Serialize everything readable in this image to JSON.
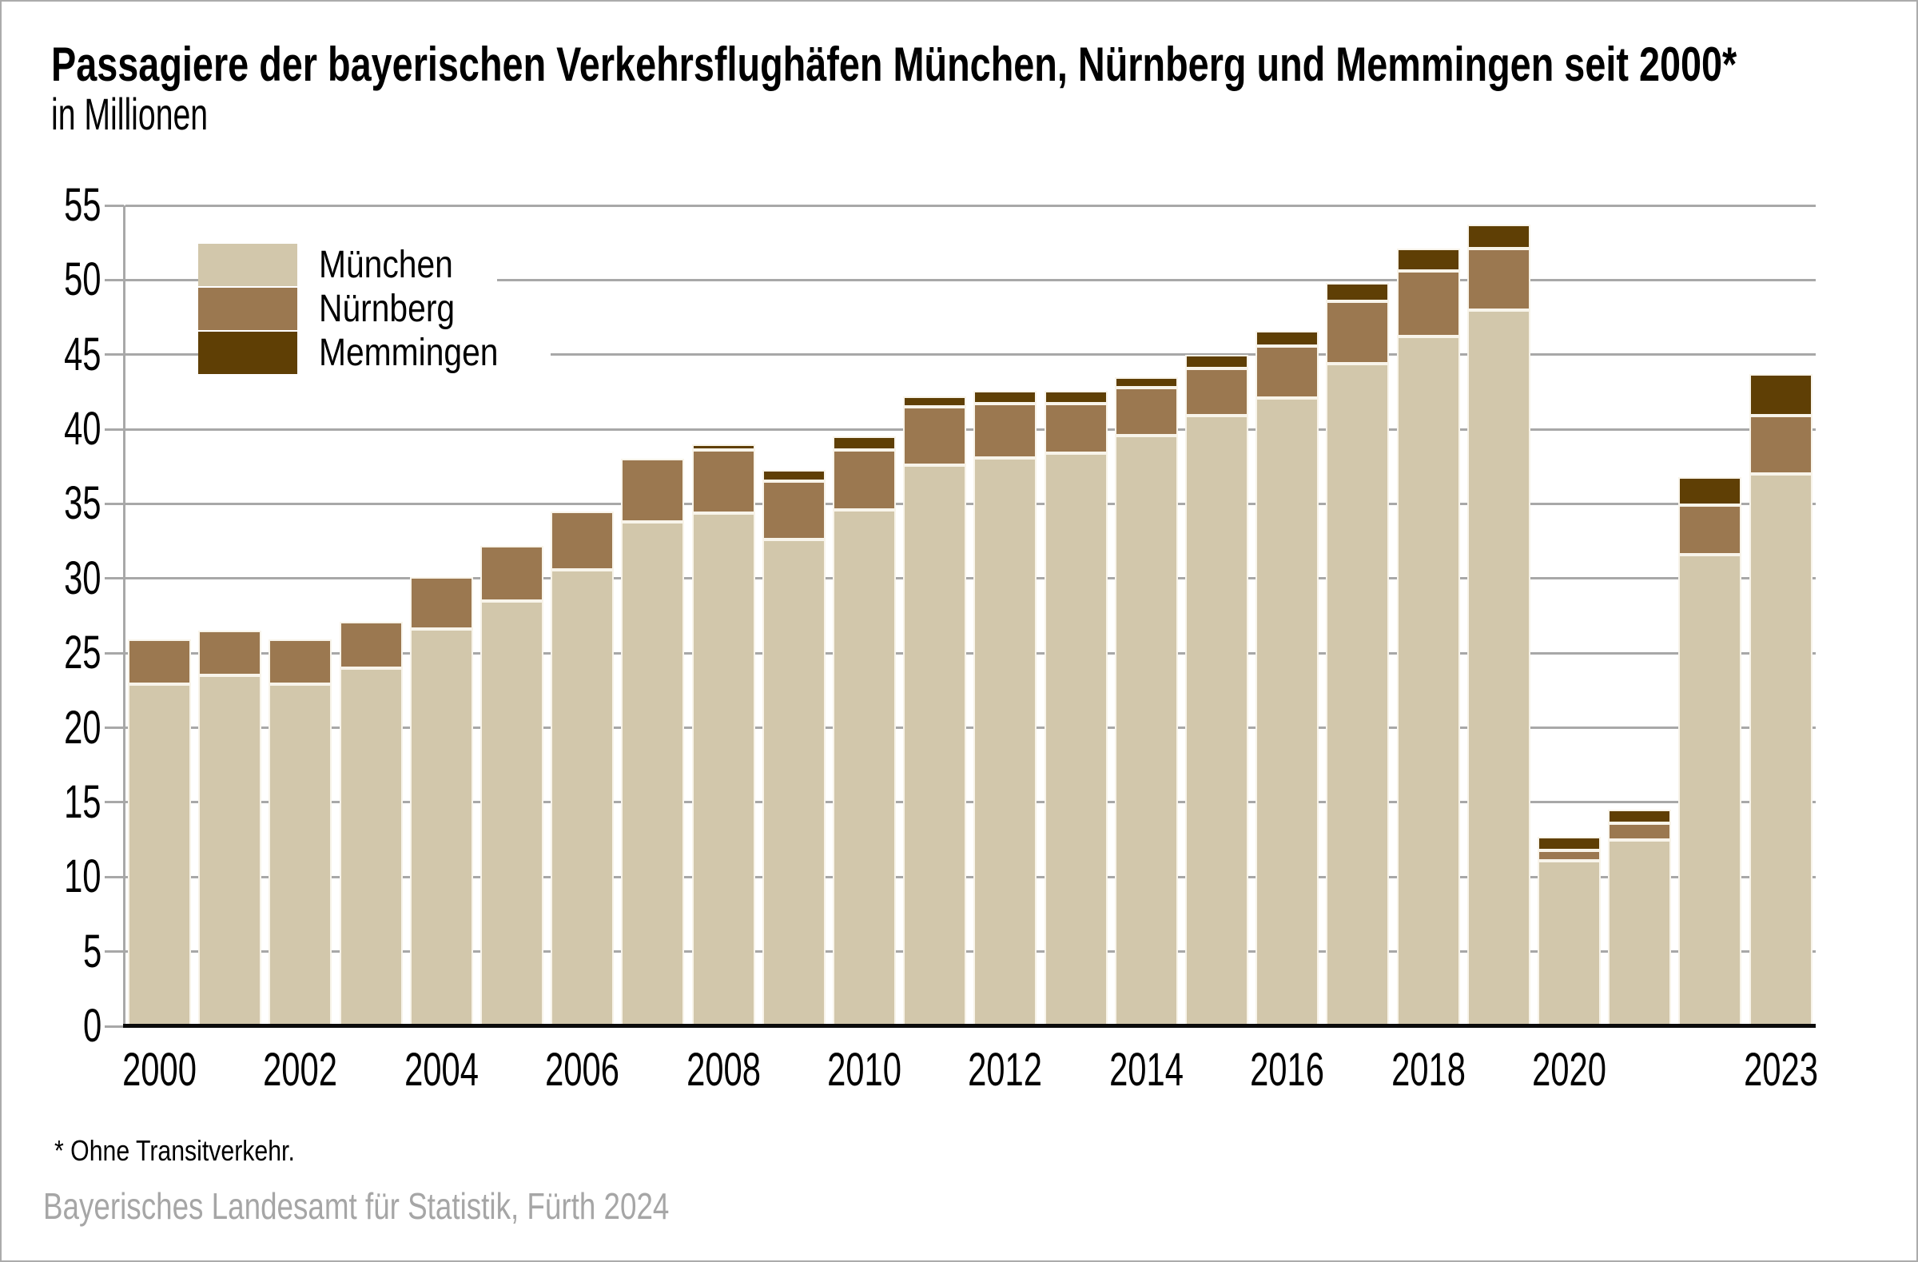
{
  "header": {
    "title": "Passagiere der bayerischen Verkehrsflughäfen München, Nürnberg und Memmingen seit 2000*",
    "subtitle": "in Millionen"
  },
  "footer": {
    "footnote": "* Ohne Transitverkehr.",
    "source": "Bayerisches Landesamt für Statistik, Fürth 2024"
  },
  "colors": {
    "muenchen": "#D2C7AB",
    "nuernberg": "#9B7850",
    "memmingen": "#5F3F05",
    "gridline": "#A8A8A8",
    "zero_axis": "#0B0B0B",
    "segment_border": "#F8F4EA",
    "source_text": "#A6A6A6",
    "frame": "#ABABAB",
    "background": "#FFFFFF"
  },
  "chart_data": {
    "type": "bar",
    "stacked": true,
    "title": "Passagiere der bayerischen Verkehrsflughäfen München, Nürnberg und Memmingen seit 2000*",
    "subtitle_unit": "in Millionen",
    "categories": [
      "2000",
      "2001",
      "2002",
      "2003",
      "2004",
      "2005",
      "2006",
      "2007",
      "2008",
      "2009",
      "2010",
      "2011",
      "2012",
      "2013",
      "2014",
      "2015",
      "2016",
      "2017",
      "2018",
      "2019",
      "2020",
      "2021",
      "2022",
      "2023"
    ],
    "series": [
      {
        "name": "München",
        "color": "#D2C7AB",
        "values": [
          22.9,
          23.5,
          22.9,
          24.0,
          26.6,
          28.5,
          30.6,
          33.8,
          34.4,
          32.6,
          34.6,
          37.6,
          38.1,
          38.4,
          39.6,
          40.9,
          42.1,
          44.4,
          46.2,
          48.0,
          11.1,
          12.5,
          31.6,
          37.0
        ]
      },
      {
        "name": "Nürnberg",
        "color": "#9B7850",
        "values": [
          3.0,
          3.0,
          3.0,
          3.1,
          3.5,
          3.7,
          3.9,
          4.2,
          4.2,
          3.9,
          4.0,
          3.9,
          3.6,
          3.3,
          3.2,
          3.2,
          3.5,
          4.2,
          4.4,
          4.1,
          0.7,
          1.1,
          3.3,
          3.9
        ]
      },
      {
        "name": "Memmingen",
        "color": "#5F3F05",
        "values": [
          0,
          0,
          0,
          0,
          0,
          0,
          0,
          0,
          0.4,
          0.8,
          0.9,
          0.7,
          0.9,
          0.9,
          0.7,
          0.9,
          1.0,
          1.2,
          1.5,
          1.6,
          0.9,
          0.9,
          1.9,
          2.8
        ]
      }
    ],
    "ylim": [
      0,
      55
    ],
    "ytick_step": 5,
    "ytick_labels": [
      "0",
      "5",
      "10",
      "15",
      "20",
      "25",
      "30",
      "35",
      "40",
      "45",
      "50",
      "55"
    ],
    "xticks": [
      {
        "index": 0,
        "label": "2000"
      },
      {
        "index": 2,
        "label": "2002"
      },
      {
        "index": 4,
        "label": "2004"
      },
      {
        "index": 6,
        "label": "2006"
      },
      {
        "index": 8,
        "label": "2008"
      },
      {
        "index": 10,
        "label": "2010"
      },
      {
        "index": 12,
        "label": "2012"
      },
      {
        "index": 14,
        "label": "2014"
      },
      {
        "index": 16,
        "label": "2016"
      },
      {
        "index": 18,
        "label": "2018"
      },
      {
        "index": 20,
        "label": "2020"
      },
      {
        "index": 23,
        "label": "2023"
      }
    ],
    "grid": "horizontal",
    "legend_position": "top-left",
    "legend_entries": [
      "München",
      "Nürnberg",
      "Memmingen"
    ]
  }
}
